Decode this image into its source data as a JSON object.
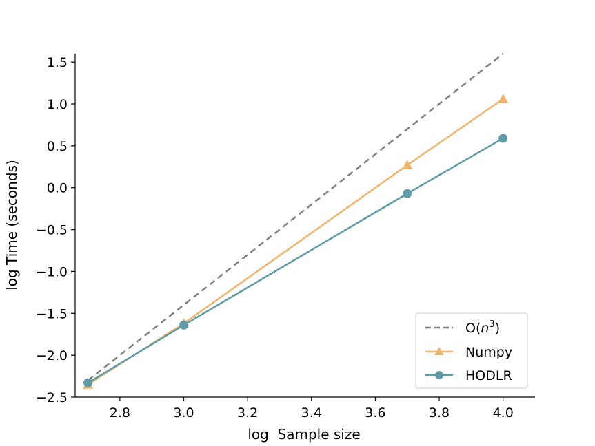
{
  "chart_data": {
    "type": "line",
    "title": "",
    "xlabel": "log  Sample size",
    "ylabel": "log Time (seconds)",
    "xlim": [
      2.66,
      4.1
    ],
    "ylim": [
      -2.5,
      1.6
    ],
    "xticks": [
      2.8,
      3.0,
      3.2,
      3.4,
      3.6,
      3.8,
      4.0
    ],
    "xtick_labels": [
      "2.8",
      "3.0",
      "3.2",
      "3.4",
      "3.6",
      "3.8",
      "4.0"
    ],
    "yticks": [
      -2.5,
      -2.0,
      -1.5,
      -1.0,
      -0.5,
      0.0,
      0.5,
      1.0,
      1.5
    ],
    "ytick_labels": [
      "−2.5",
      "−2.0",
      "−1.5",
      "−1.0",
      "−0.5",
      "0.0",
      "0.5",
      "1.0",
      "1.5"
    ],
    "legend_position": "lower-right",
    "series": [
      {
        "name": "O(n3)",
        "legend_base": "O(",
        "legend_var": "n",
        "legend_sup": "3",
        "legend_close": ")",
        "style": "dashed",
        "marker": "none",
        "color": "#808080",
        "x": [
          2.7,
          4.0
        ],
        "y": [
          -2.3,
          1.6
        ]
      },
      {
        "name": "Numpy",
        "style": "solid",
        "marker": "triangle",
        "color": "#f0b46b",
        "x": [
          2.7,
          3.0,
          3.7,
          4.0
        ],
        "y": [
          -2.35,
          -1.62,
          0.27,
          1.06
        ]
      },
      {
        "name": "HODLR",
        "style": "solid",
        "marker": "circle",
        "color": "#5f9ba5",
        "x": [
          2.7,
          3.0,
          3.7,
          4.0
        ],
        "y": [
          -2.33,
          -1.64,
          -0.07,
          0.59
        ]
      }
    ]
  }
}
